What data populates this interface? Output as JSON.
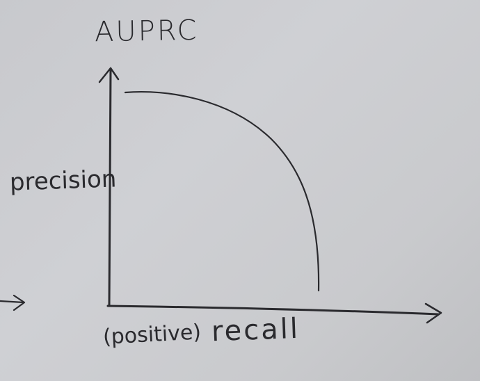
{
  "diagram": {
    "title": "AUPRC",
    "y_axis_label": "precision",
    "x_axis_qualifier": "(positive)",
    "x_axis_label": "recall"
  },
  "colors": {
    "board": "#cbccd0",
    "ink": "#2a2a2e"
  }
}
